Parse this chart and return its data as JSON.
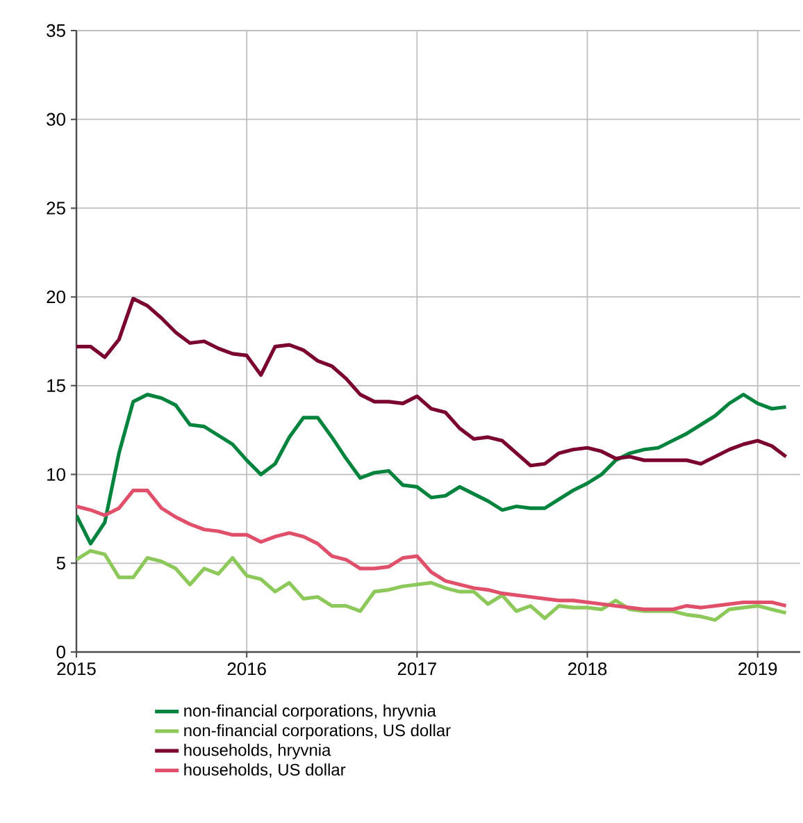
{
  "chart_data": {
    "type": "line",
    "x": [
      "2015-01",
      "2015-02",
      "2015-03",
      "2015-04",
      "2015-05",
      "2015-06",
      "2015-07",
      "2015-08",
      "2015-09",
      "2015-10",
      "2015-11",
      "2015-12",
      "2016-01",
      "2016-02",
      "2016-03",
      "2016-04",
      "2016-05",
      "2016-06",
      "2016-07",
      "2016-08",
      "2016-09",
      "2016-10",
      "2016-11",
      "2016-12",
      "2017-01",
      "2017-02",
      "2017-03",
      "2017-04",
      "2017-05",
      "2017-06",
      "2017-07",
      "2017-08",
      "2017-09",
      "2017-10",
      "2017-11",
      "2017-12",
      "2018-01",
      "2018-02",
      "2018-03",
      "2018-04",
      "2018-05",
      "2018-06",
      "2018-07",
      "2018-08",
      "2018-09",
      "2018-10",
      "2018-11",
      "2018-12",
      "2019-01",
      "2019-02",
      "2019-03"
    ],
    "series": [
      {
        "name": "non-financial corporations, hryvnia",
        "color": "#00843d",
        "values": [
          7.7,
          6.1,
          7.3,
          11.2,
          14.1,
          14.5,
          14.3,
          13.9,
          12.8,
          12.7,
          12.2,
          11.7,
          10.8,
          10.0,
          10.6,
          12.1,
          13.2,
          13.2,
          12.1,
          10.9,
          9.8,
          10.1,
          10.2,
          9.4,
          9.3,
          8.7,
          8.8,
          9.3,
          8.9,
          8.5,
          8.0,
          8.2,
          8.1,
          8.1,
          8.6,
          9.1,
          9.5,
          10.0,
          10.8,
          11.2,
          11.4,
          11.5,
          11.9,
          12.3,
          12.8,
          13.3,
          14.0,
          14.5,
          14.0,
          13.7,
          13.8
        ]
      },
      {
        "name": "non-financial corporations, US dollar",
        "color": "#8dc85a",
        "values": [
          5.2,
          5.7,
          5.5,
          4.2,
          4.2,
          5.3,
          5.1,
          4.7,
          3.8,
          4.7,
          4.4,
          5.3,
          4.3,
          4.1,
          3.4,
          3.9,
          3.0,
          3.1,
          2.6,
          2.6,
          2.3,
          3.4,
          3.5,
          3.7,
          3.8,
          3.9,
          3.6,
          3.4,
          3.4,
          2.7,
          3.2,
          2.3,
          2.6,
          1.9,
          2.6,
          2.5,
          2.5,
          2.4,
          2.9,
          2.4,
          2.3,
          2.3,
          2.3,
          2.1,
          2.0,
          1.8,
          2.4,
          2.5,
          2.6,
          2.4,
          2.2
        ]
      },
      {
        "name": "households, hryvnia",
        "color": "#7a0030",
        "values": [
          17.2,
          17.2,
          16.6,
          17.6,
          19.9,
          19.5,
          18.8,
          18.0,
          17.4,
          17.5,
          17.1,
          16.8,
          16.7,
          15.6,
          17.2,
          17.3,
          17.0,
          16.4,
          16.1,
          15.4,
          14.5,
          14.1,
          14.1,
          14.0,
          14.4,
          13.7,
          13.5,
          12.6,
          12.0,
          12.1,
          11.9,
          11.2,
          10.5,
          10.6,
          11.2,
          11.4,
          11.5,
          11.3,
          10.9,
          11.0,
          10.8,
          10.8,
          10.8,
          10.8,
          10.6,
          11.0,
          11.4,
          11.7,
          11.9,
          11.6,
          11.0
        ]
      },
      {
        "name": "households, US dollar",
        "color": "#e0506a",
        "values": [
          8.2,
          8.0,
          7.7,
          8.1,
          9.1,
          9.1,
          8.1,
          7.6,
          7.2,
          6.9,
          6.8,
          6.6,
          6.6,
          6.2,
          6.5,
          6.7,
          6.5,
          6.1,
          5.4,
          5.2,
          4.7,
          4.7,
          4.8,
          5.3,
          5.4,
          4.5,
          4.0,
          3.8,
          3.6,
          3.5,
          3.3,
          3.2,
          3.1,
          3.0,
          2.9,
          2.9,
          2.8,
          2.7,
          2.6,
          2.5,
          2.4,
          2.4,
          2.4,
          2.6,
          2.5,
          2.6,
          2.7,
          2.8,
          2.8,
          2.8,
          2.6
        ]
      }
    ],
    "xlim": [
      "2015-01",
      "2019-04"
    ],
    "xticks": [
      "2015",
      "2016",
      "2017",
      "2018",
      "2019"
    ],
    "ylim": [
      0,
      35
    ],
    "yticks": [
      0,
      5,
      10,
      15,
      20,
      25,
      30,
      35
    ],
    "grid": true,
    "legend": "bottom",
    "marker": "none",
    "line_style": "solid"
  }
}
